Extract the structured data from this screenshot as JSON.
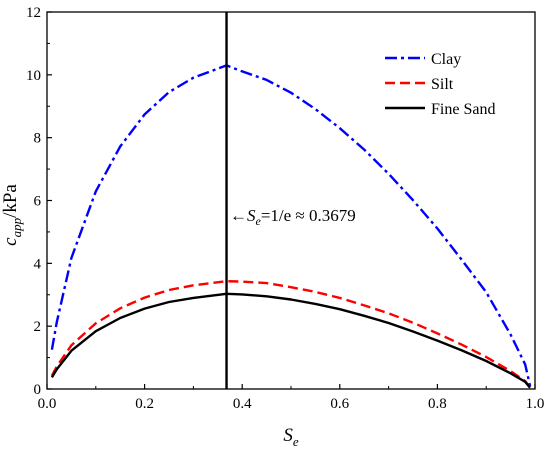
{
  "chart_data": {
    "type": "line",
    "title": "",
    "xlabel": {
      "main": "S",
      "sub": "e"
    },
    "ylabel": {
      "main": "c",
      "sub": "app",
      "suffix": "/kPa"
    },
    "xlim": [
      0.0,
      1.0
    ],
    "ylim": [
      0,
      12
    ],
    "xticks": [
      0.0,
      0.2,
      0.4,
      0.6,
      0.8,
      1.0
    ],
    "xtick_labels": [
      "0.0",
      "0.2",
      "0.4",
      "0.6",
      "0.8",
      "1.0"
    ],
    "yticks": [
      0,
      2,
      4,
      6,
      8,
      10,
      12
    ],
    "ytick_labels": [
      "0",
      "2",
      "4",
      "6",
      "8",
      "10",
      "12"
    ],
    "grid": false,
    "legend_position": "top-right",
    "x": [
      0.01,
      0.02,
      0.05,
      0.1,
      0.15,
      0.2,
      0.25,
      0.3,
      0.3679,
      0.4,
      0.45,
      0.5,
      0.55,
      0.6,
      0.65,
      0.7,
      0.75,
      0.8,
      0.85,
      0.9,
      0.95,
      0.98,
      0.99
    ],
    "series": [
      {
        "name": "Clay",
        "color": "#0000ff",
        "style": "dash-dot",
        "values": [
          1.25,
          2.13,
          4.17,
          6.29,
          7.72,
          8.74,
          9.45,
          9.91,
          10.3,
          10.11,
          9.84,
          9.43,
          8.91,
          8.3,
          7.62,
          6.85,
          6.01,
          5.11,
          4.11,
          3.08,
          1.73,
          0.78,
          0.09
        ]
      },
      {
        "name": "Silt",
        "color": "#ff0000",
        "style": "dashed",
        "values": [
          0.42,
          0.72,
          1.39,
          2.09,
          2.57,
          2.91,
          3.15,
          3.3,
          3.43,
          3.42,
          3.37,
          3.24,
          3.09,
          2.9,
          2.66,
          2.41,
          2.11,
          1.77,
          1.41,
          1.02,
          0.57,
          0.25,
          0.04
        ]
      },
      {
        "name": "Fine Sand",
        "color": "#000000",
        "style": "solid",
        "values": [
          0.37,
          0.63,
          1.22,
          1.84,
          2.26,
          2.56,
          2.77,
          2.9,
          3.03,
          3.01,
          2.95,
          2.85,
          2.71,
          2.54,
          2.33,
          2.1,
          1.83,
          1.54,
          1.23,
          0.89,
          0.5,
          0.23,
          0.04
        ]
      }
    ],
    "vline": {
      "x": 0.3679,
      "color": "#000000"
    },
    "annotation": {
      "x": 0.375,
      "y": 5.35,
      "arrow": "←",
      "var": "S",
      "sub": "e",
      "rest": "=1/e ≈ 0.3679"
    }
  }
}
